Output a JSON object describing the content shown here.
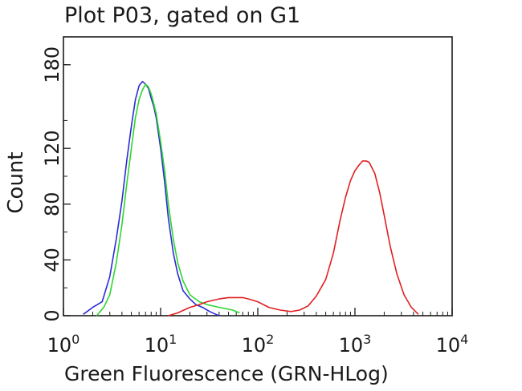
{
  "chart_data": {
    "type": "line",
    "title": "Plot P03, gated on G1",
    "xlabel": "Green Fluorescence (GRN-HLog)",
    "ylabel": "Count",
    "x_scale": "log",
    "xlim": [
      1,
      10000
    ],
    "ylim": [
      0,
      200
    ],
    "x_ticks": [
      {
        "value": 1,
        "base": "10",
        "exp": "0"
      },
      {
        "value": 10,
        "base": "10",
        "exp": "1"
      },
      {
        "value": 100,
        "base": "10",
        "exp": "2"
      },
      {
        "value": 1000,
        "base": "10",
        "exp": "3"
      },
      {
        "value": 10000,
        "base": "10",
        "exp": "4"
      }
    ],
    "y_ticks": [
      {
        "value": 0,
        "label": "0"
      },
      {
        "value": 40,
        "label": "40"
      },
      {
        "value": 80,
        "label": "80"
      },
      {
        "value": 120,
        "label": "120"
      },
      {
        "value": 180,
        "label": "180"
      }
    ],
    "grid": false,
    "legend": "none",
    "series": [
      {
        "color": "#2b2bd6",
        "x": [
          1.6,
          2.0,
          2.5,
          3.0,
          3.5,
          4.0,
          4.5,
          5.0,
          5.5,
          6.0,
          6.5,
          7.0,
          7.5,
          8.0,
          8.5,
          9.0,
          10.0,
          11.0,
          12.0,
          13.5,
          15.0,
          17.0,
          20.0,
          23.0,
          27.0,
          32.0,
          37.0,
          40.0
        ],
        "y": [
          1,
          6,
          10,
          28,
          55,
          82,
          112,
          136,
          155,
          165,
          168,
          166,
          163,
          156,
          150,
          142,
          120,
          96,
          70,
          45,
          30,
          18,
          12,
          8,
          6,
          3,
          1,
          0
        ]
      },
      {
        "color": "#2ed62e",
        "x": [
          2.2,
          2.6,
          3.0,
          3.5,
          4.0,
          4.5,
          5.0,
          5.5,
          6.0,
          6.5,
          7.0,
          7.5,
          8.0,
          8.5,
          9.0,
          10.0,
          11.0,
          12.0,
          13.5,
          15.0,
          17.0,
          20.0,
          25.0,
          30.0,
          40.0,
          55.0,
          65.0
        ],
        "y": [
          0,
          6,
          15,
          38,
          65,
          95,
          120,
          142,
          155,
          162,
          166,
          164,
          159,
          152,
          145,
          125,
          104,
          80,
          55,
          38,
          25,
          15,
          10,
          8,
          6,
          4,
          2
        ]
      },
      {
        "color": "#e02020",
        "x": [
          12.0,
          15.0,
          20.0,
          25.0,
          30.0,
          40.0,
          50.0,
          60.0,
          70.0,
          80.0,
          100.0,
          130.0,
          170.0,
          220.0,
          270.0,
          330.0,
          400.0,
          500.0,
          600.0,
          700.0,
          800.0,
          900.0,
          1000.0,
          1100.0,
          1200.0,
          1300.0,
          1400.0,
          1600.0,
          1800.0,
          2000.0,
          2300.0,
          2700.0,
          3200.0,
          3800.0,
          4500.0
        ],
        "y": [
          0,
          2,
          6,
          8,
          10,
          12,
          13,
          13,
          13,
          12,
          10,
          6,
          4,
          3,
          4,
          7,
          14,
          26,
          45,
          68,
          85,
          97,
          104,
          108,
          111,
          111,
          110,
          102,
          88,
          72,
          50,
          30,
          15,
          6,
          1
        ]
      }
    ]
  }
}
